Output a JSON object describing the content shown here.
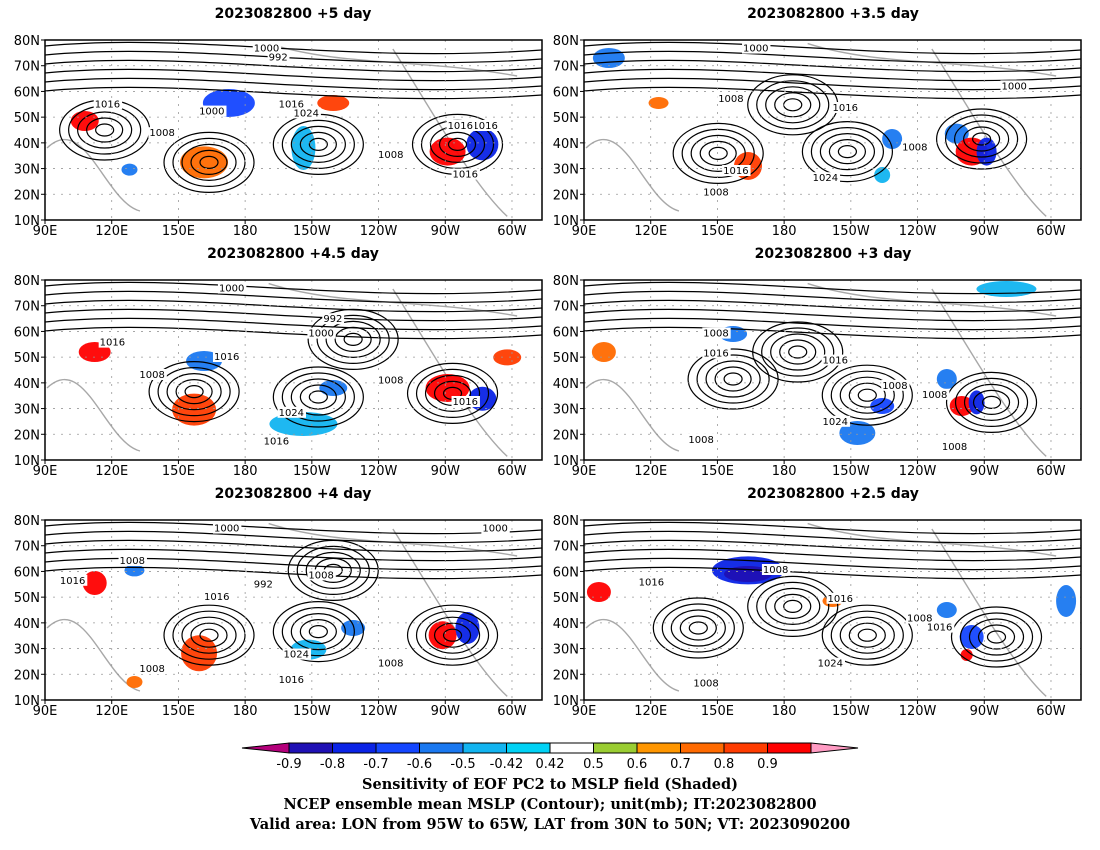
{
  "panels": [
    {
      "title": "2023082800 +5 day"
    },
    {
      "title": "2023082800 +3.5 day"
    },
    {
      "title": "2023082800 +4.5 day"
    },
    {
      "title": "2023082800 +3 day"
    },
    {
      "title": "2023082800 +4 day"
    },
    {
      "title": "2023082800 +2.5 day"
    }
  ],
  "axes": {
    "lat_ticks": [
      "10N",
      "20N",
      "30N",
      "40N",
      "50N",
      "60N",
      "70N",
      "80N"
    ],
    "lon_ticks": [
      "90E",
      "120E",
      "150E",
      "180",
      "150W",
      "120W",
      "90W",
      "60W"
    ]
  },
  "contour_labels": [
    [
      "1000",
      "992",
      "1016",
      "1016",
      "1024",
      "1000",
      "1008",
      "1016",
      "1008",
      "1016",
      "1016"
    ],
    [
      "1000",
      "1008",
      "1016",
      "1000",
      "1008",
      "1016",
      "1024",
      "1008"
    ],
    [
      "1000",
      "992",
      "1000",
      "1016",
      "1016",
      "1008",
      "1008",
      "1024",
      "1016",
      "1016"
    ],
    [
      "1008",
      "1016",
      "1016",
      "1008",
      "1008",
      "1024",
      "1008",
      "1008"
    ],
    [
      "1000",
      "1008",
      "1008",
      "992",
      "1016",
      "1016",
      "1000",
      "1008",
      "1024",
      "1016",
      "1008"
    ],
    [
      "1016",
      "1008",
      "1016",
      "1008",
      "1016",
      "1024",
      "1008"
    ]
  ],
  "colorbar": {
    "ticks": [
      "-0.9",
      "-0.8",
      "-0.7",
      "-0.6",
      "-0.5",
      "-0.42",
      "0.42",
      "0.5",
      "0.6",
      "0.7",
      "0.8",
      "0.9"
    ],
    "colors": [
      "#b4007b",
      "#1f10b4",
      "#0a23e6",
      "#1446ff",
      "#1a78f0",
      "#12b4f0",
      "#00d2f5",
      "#ffffff",
      "#9acd32",
      "#ff9600",
      "#ff6a00",
      "#ff3c00",
      "#ff0000",
      "#ff9bc3"
    ]
  },
  "captions": {
    "line1": "Sensitivity of EOF PC2 to MSLP field (Shaded)",
    "line2": "NCEP ensemble mean MSLP (Contour); unit(mb); IT:2023082800",
    "line3": "Valid area: LON from 95W to 65W, LAT from 30N to 50N; VT: 2023090200"
  }
}
